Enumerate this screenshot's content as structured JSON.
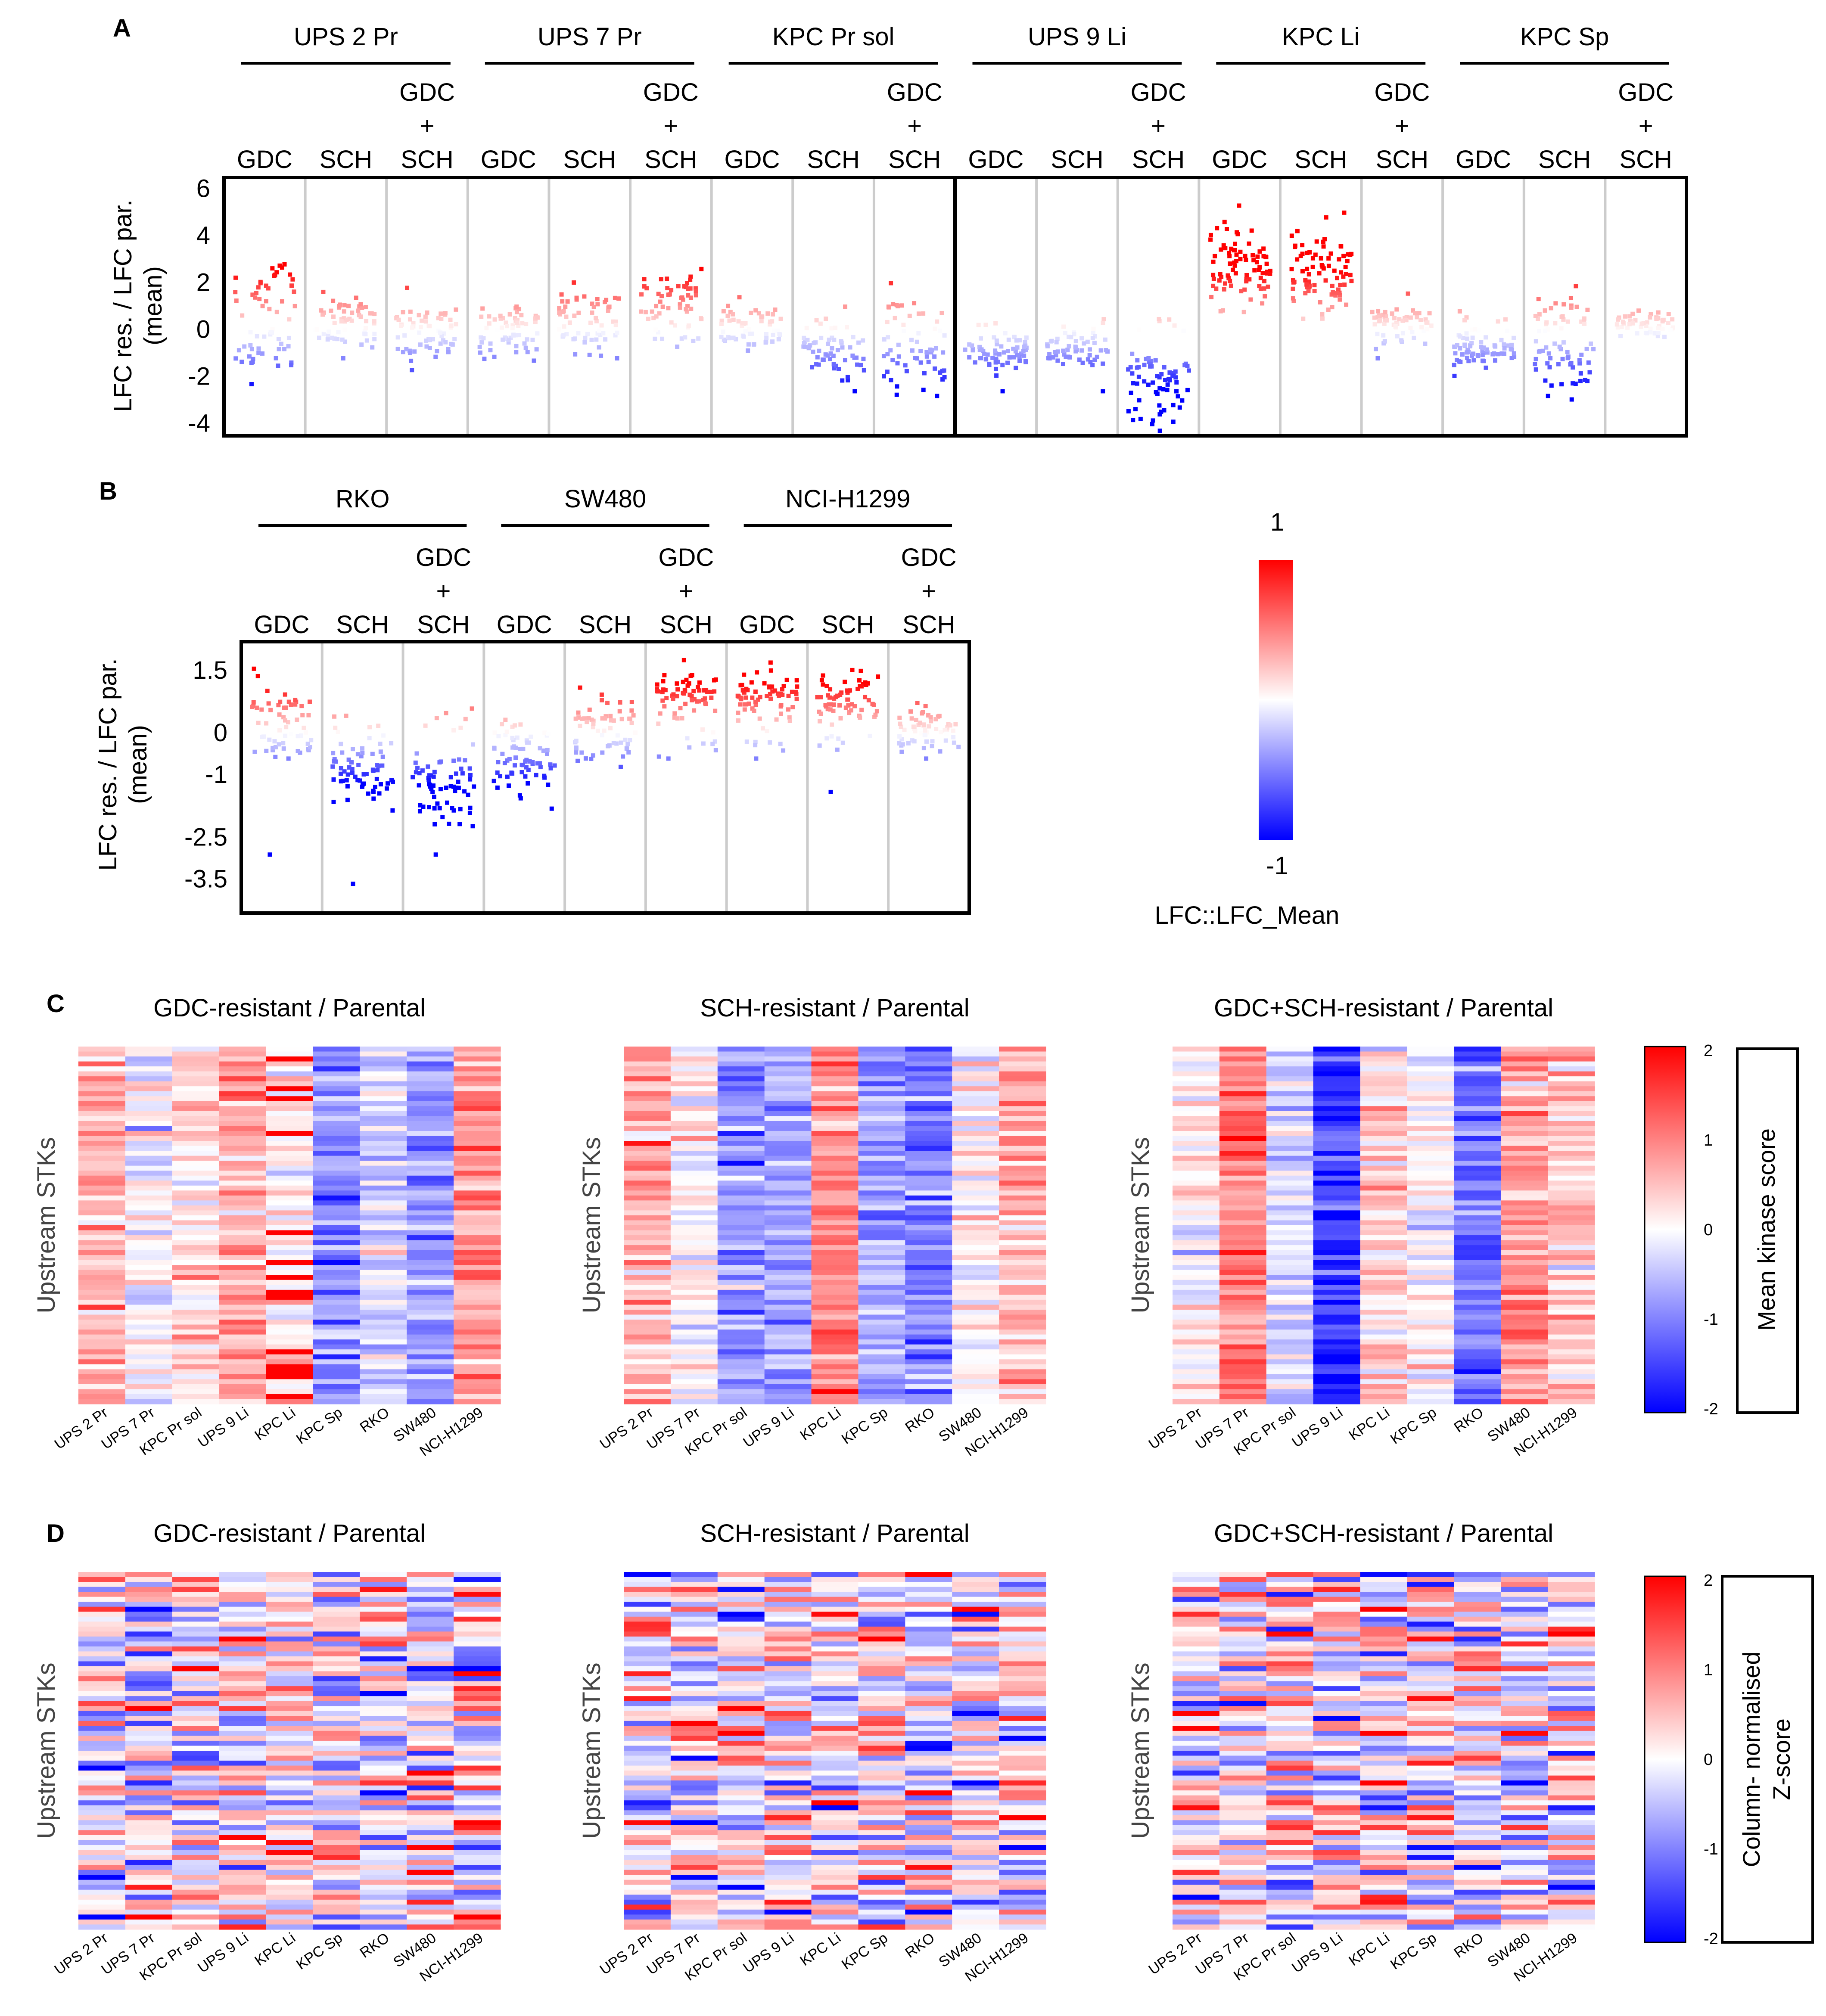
{
  "panel_letters": {
    "A": "A",
    "B": "B",
    "C": "C",
    "D": "D"
  },
  "panel_a": {
    "ylabel_line1": "LFC res. / LFC par.",
    "ylabel_line2": "(mean)",
    "groups": [
      "UPS 2 Pr",
      "UPS 7 Pr",
      "KPC Pr sol",
      "UPS 9 Li",
      "KPC Li",
      "KPC Sp"
    ],
    "treatments": [
      "GDC",
      "SCH",
      "GDC + SCH"
    ],
    "combo_label": {
      "top": "GDC",
      "mid": "+",
      "bottom": "SCH"
    }
  },
  "panel_b": {
    "ylabel_line1": "LFC res. / LFC par.",
    "ylabel_line2": "(mean)",
    "groups": [
      "RKO",
      "SW480",
      "NCI-H1299"
    ],
    "treatments": [
      "GDC",
      "SCH",
      "GDC + SCH"
    ]
  },
  "legend_ab": {
    "max_label": "1",
    "min_label": "-1",
    "title": "LFC::LFC_Mean"
  },
  "panel_c": {
    "row_label": "Upstream STKs",
    "titles": [
      "GDC-resistant / Parental",
      "SCH-resistant / Parental",
      "GDC+SCH-resistant / Parental"
    ],
    "colorbar_title": "Mean kinase score",
    "colorbar_ticks": [
      "2",
      "1",
      "0",
      "-1",
      "-2"
    ]
  },
  "panel_d": {
    "row_label": "Upstream STKs",
    "titles": [
      "GDC-resistant / Parental",
      "SCH-resistant / Parental",
      "GDC+SCH-resistant / Parental"
    ],
    "colorbar_title_line1": "Column- normalised",
    "colorbar_title_line2": "Z-score",
    "colorbar_ticks": [
      "2",
      "1",
      "0",
      "-1",
      "-2"
    ]
  },
  "heatmap_columns": [
    "UPS 2 Pr",
    "UPS 7 Pr",
    "KPC Pr sol",
    "UPS 9 Li",
    "KPC Li",
    "KPC Sp",
    "RKO",
    "SW480",
    "NCI-H1299"
  ],
  "colors": {
    "high": "#ff0000",
    "low": "#0000ff",
    "mid": "#ffffff",
    "grid": "#cccccc",
    "frame": "#000000"
  },
  "chart_data": [
    {
      "type": "scatter",
      "panel": "A",
      "ylabel": "LFC res. / LFC par. (mean)",
      "ylim": [
        -4.5,
        6.5
      ],
      "yticks": [
        6,
        4,
        2,
        0,
        -2,
        -4
      ],
      "columns": [
        {
          "group": "UPS 2 Pr",
          "treatment": "GDC",
          "n": 60,
          "pos_center": 1.6,
          "pos_spread": 0.7,
          "neg_center": -0.6,
          "neg_spread": 0.5,
          "pos_frac": 0.5,
          "outliers": [
            -2.3,
            2.8
          ]
        },
        {
          "group": "UPS 2 Pr",
          "treatment": "SCH",
          "n": 60,
          "pos_center": 0.7,
          "pos_spread": 0.35,
          "neg_center": -0.3,
          "neg_spread": 0.25,
          "pos_frac": 0.65,
          "outliers": [
            -1.2
          ]
        },
        {
          "group": "UPS 2 Pr",
          "treatment": "GDC + SCH",
          "n": 60,
          "pos_center": 0.5,
          "pos_spread": 0.35,
          "neg_center": -0.5,
          "neg_spread": 0.35,
          "pos_frac": 0.5,
          "outliers": [
            1.8,
            -1.7
          ]
        },
        {
          "group": "UPS 7 Pr",
          "treatment": "GDC",
          "n": 60,
          "pos_center": 0.4,
          "pos_spread": 0.3,
          "neg_center": -0.4,
          "neg_spread": 0.35,
          "pos_frac": 0.45,
          "outliers": [
            -1.3,
            1.0
          ]
        },
        {
          "group": "UPS 7 Pr",
          "treatment": "SCH",
          "n": 60,
          "pos_center": 0.9,
          "pos_spread": 0.35,
          "neg_center": -0.3,
          "neg_spread": 0.35,
          "pos_frac": 0.6,
          "outliers": [
            -1.2
          ]
        },
        {
          "group": "UPS 7 Pr",
          "treatment": "GDC + SCH",
          "n": 60,
          "pos_center": 1.2,
          "pos_spread": 0.55,
          "neg_center": -0.3,
          "neg_spread": 0.3,
          "pos_frac": 0.8,
          "outliers": [
            2.6
          ]
        },
        {
          "group": "KPC Pr sol",
          "treatment": "GDC",
          "n": 60,
          "pos_center": 0.4,
          "pos_spread": 0.3,
          "neg_center": -0.3,
          "neg_spread": 0.2,
          "pos_frac": 0.55,
          "outliers": [
            1.4
          ]
        },
        {
          "group": "KPC Pr sol",
          "treatment": "SCH",
          "n": 60,
          "pos_center": 0.2,
          "pos_spread": 0.3,
          "neg_center": -1.0,
          "neg_spread": 0.45,
          "pos_frac": 0.15,
          "outliers": [
            -2.6,
            1.0
          ]
        },
        {
          "group": "KPC Pr sol",
          "treatment": "GDC + SCH",
          "n": 60,
          "pos_center": 0.5,
          "pos_spread": 0.4,
          "neg_center": -1.3,
          "neg_spread": 0.6,
          "pos_frac": 0.35,
          "outliers": [
            2.0,
            -2.8
          ]
        },
        {
          "group": "UPS 9 Li",
          "treatment": "GDC",
          "n": 70,
          "pos_center": 0.2,
          "pos_spread": 0.2,
          "neg_center": -1.1,
          "neg_spread": 0.4,
          "pos_frac": 0.05,
          "outliers": [
            -2.6
          ]
        },
        {
          "group": "UPS 9 Li",
          "treatment": "SCH",
          "n": 60,
          "pos_center": 0.3,
          "pos_spread": 0.2,
          "neg_center": -0.8,
          "neg_spread": 0.4,
          "pos_frac": 0.12,
          "outliers": [
            -2.6
          ]
        },
        {
          "group": "UPS 9 Li",
          "treatment": "GDC + SCH",
          "n": 70,
          "pos_center": 0.2,
          "pos_spread": 0.2,
          "neg_center": -2.3,
          "neg_spread": 0.8,
          "pos_frac": 0.03,
          "outliers": [
            -3.9,
            -4.0
          ]
        },
        {
          "group": "KPC Li",
          "treatment": "GDC",
          "n": 80,
          "pos_center": 2.5,
          "pos_spread": 0.9,
          "neg_center": 0.0,
          "neg_spread": 0.2,
          "pos_frac": 1.0,
          "outliers": [
            5.3,
            4.3
          ]
        },
        {
          "group": "KPC Li",
          "treatment": "SCH",
          "n": 80,
          "pos_center": 2.3,
          "pos_spread": 0.9,
          "neg_center": 0.0,
          "neg_spread": 0.2,
          "pos_frac": 1.0,
          "outliers": [
            5.0,
            4.8
          ]
        },
        {
          "group": "KPC Li",
          "treatment": "GDC + SCH",
          "n": 60,
          "pos_center": 0.5,
          "pos_spread": 0.3,
          "neg_center": -0.3,
          "neg_spread": 0.2,
          "pos_frac": 0.7,
          "outliers": [
            -1.2
          ]
        },
        {
          "group": "KPC Sp",
          "treatment": "GDC",
          "n": 70,
          "pos_center": 0.3,
          "pos_spread": 0.3,
          "neg_center": -0.9,
          "neg_spread": 0.35,
          "pos_frac": 0.12,
          "outliers": [
            0.8,
            -1.6
          ]
        },
        {
          "group": "KPC Sp",
          "treatment": "SCH",
          "n": 70,
          "pos_center": 0.7,
          "pos_spread": 0.45,
          "neg_center": -1.4,
          "neg_spread": 0.55,
          "pos_frac": 0.35,
          "outliers": [
            -2.8,
            1.1
          ]
        },
        {
          "group": "KPC Sp",
          "treatment": "GDC + SCH",
          "n": 50,
          "pos_center": 0.35,
          "pos_spread": 0.2,
          "neg_center": -0.1,
          "neg_spread": 0.15,
          "pos_frac": 0.8,
          "outliers": []
        }
      ]
    },
    {
      "type": "scatter",
      "panel": "B",
      "ylabel": "LFC res. / LFC par. (mean)",
      "ylim": [
        -4.3,
        2.2
      ],
      "yticks": [
        1.5,
        0,
        -1,
        -2.5,
        -3.5
      ],
      "columns": [
        {
          "group": "RKO",
          "treatment": "GDC",
          "n": 60,
          "pos_center": 0.55,
          "pos_spread": 0.3,
          "neg_center": -0.3,
          "neg_spread": 0.2,
          "pos_frac": 0.6,
          "outliers": [
            -2.9,
            -0.6
          ]
        },
        {
          "group": "RKO",
          "treatment": "SCH",
          "n": 70,
          "pos_center": 0.2,
          "pos_spread": 0.2,
          "neg_center": -0.9,
          "neg_spread": 0.4,
          "pos_frac": 0.05,
          "outliers": [
            -3.6
          ]
        },
        {
          "group": "RKO",
          "treatment": "GDC + SCH",
          "n": 70,
          "pos_center": 0.2,
          "pos_spread": 0.2,
          "neg_center": -1.1,
          "neg_spread": 0.5,
          "pos_frac": 0.05,
          "outliers": [
            -2.9,
            -2.0
          ]
        },
        {
          "group": "SW480",
          "treatment": "GDC",
          "n": 70,
          "pos_center": 0.1,
          "pos_spread": 0.15,
          "neg_center": -0.7,
          "neg_spread": 0.35,
          "pos_frac": 0.08,
          "outliers": []
        },
        {
          "group": "SW480",
          "treatment": "SCH",
          "n": 60,
          "pos_center": 0.3,
          "pos_spread": 0.3,
          "neg_center": -0.3,
          "neg_spread": 0.2,
          "pos_frac": 0.6,
          "outliers": [
            1.1,
            -0.8
          ]
        },
        {
          "group": "SW480",
          "treatment": "GDC + SCH",
          "n": 70,
          "pos_center": 0.9,
          "pos_spread": 0.3,
          "neg_center": -0.2,
          "neg_spread": 0.15,
          "pos_frac": 0.85,
          "outliers": [
            -0.6
          ]
        },
        {
          "group": "NCI-H1299",
          "treatment": "GDC",
          "n": 70,
          "pos_center": 0.9,
          "pos_spread": 0.3,
          "neg_center": -0.2,
          "neg_spread": 0.15,
          "pos_frac": 0.9,
          "outliers": [
            1.7,
            -0.6
          ]
        },
        {
          "group": "NCI-H1299",
          "treatment": "SCH",
          "n": 70,
          "pos_center": 0.8,
          "pos_spread": 0.3,
          "neg_center": -0.2,
          "neg_spread": 0.15,
          "pos_frac": 0.85,
          "outliers": [
            -1.4,
            1.5
          ]
        },
        {
          "group": "NCI-H1299",
          "treatment": "GDC + SCH",
          "n": 60,
          "pos_center": 0.3,
          "pos_spread": 0.2,
          "neg_center": -0.2,
          "neg_spread": 0.15,
          "pos_frac": 0.7,
          "outliers": [
            -0.6
          ]
        }
      ]
    },
    {
      "type": "heatmap",
      "panel": "C",
      "rows": 72,
      "value_range": [
        -2,
        2
      ],
      "row_label": "Upstream STKs",
      "columns": [
        "UPS 2 Pr",
        "UPS 7 Pr",
        "KPC Pr sol",
        "UPS 9 Li",
        "KPC Li",
        "KPC Sp",
        "RKO",
        "SW480",
        "NCI-H1299"
      ],
      "approx_column_means": {
        "GDC-resistant / Parental": [
          0.6,
          0.0,
          0.3,
          0.7,
          0.0,
          -0.9,
          -0.3,
          -0.8,
          0.8
        ],
        "SCH-resistant / Parental": [
          0.6,
          0.0,
          -0.9,
          -0.7,
          0.9,
          -0.8,
          -1.0,
          0.1,
          0.6
        ],
        "GDC+SCH-resistant / Parental": [
          0.1,
          1.1,
          -0.3,
          -1.6,
          0.3,
          0.0,
          -1.1,
          0.8,
          0.4
        ]
      }
    },
    {
      "type": "heatmap",
      "panel": "D",
      "rows": 72,
      "value_range": [
        -2,
        2
      ],
      "row_label": "Upstream STKs",
      "normalisation": "column z-score",
      "columns": [
        "UPS 2 Pr",
        "UPS 7 Pr",
        "KPC Pr sol",
        "UPS 9 Li",
        "KPC Li",
        "KPC Sp",
        "RKO",
        "SW480",
        "NCI-H1299"
      ]
    }
  ]
}
